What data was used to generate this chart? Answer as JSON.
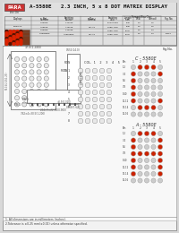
{
  "bg_color": "#d8d8d8",
  "page_bg": "#f0f0f0",
  "white": "#ffffff",
  "title_text": "A-5580E   2.3 INCH, 5 x 8 DOT MATRIX DISPLAY",
  "logo_color": "#cc3333",
  "header_bg": "#cccccc",
  "dot_on": "#cc2200",
  "dot_off": "#cccccc",
  "dot_edge": "#999999",
  "line_color": "#888888",
  "text_color": "#222222",
  "dim_color": "#555555",
  "section_label_c": "C - 5580E",
  "section_label_a": "A - 5580E",
  "footnote1": "1. All dimensions are in millimeters (inches).",
  "footnote2": "2.Tolerance is ±0.25 mm(±0.01) unless otherwise specified.",
  "c_pattern": [
    [
      0,
      1,
      1,
      1,
      0
    ],
    [
      1,
      0,
      0,
      0,
      1
    ],
    [
      1,
      0,
      0,
      0,
      0
    ],
    [
      1,
      0,
      0,
      0,
      0
    ],
    [
      1,
      0,
      0,
      0,
      0
    ],
    [
      1,
      0,
      0,
      0,
      1
    ],
    [
      0,
      1,
      1,
      1,
      0
    ],
    [
      0,
      0,
      0,
      0,
      0
    ]
  ],
  "a_pattern": [
    [
      0,
      1,
      1,
      1,
      0
    ],
    [
      1,
      0,
      0,
      0,
      1
    ],
    [
      1,
      0,
      0,
      0,
      1
    ],
    [
      1,
      1,
      1,
      1,
      1
    ],
    [
      1,
      0,
      0,
      0,
      1
    ],
    [
      1,
      0,
      0,
      0,
      1
    ],
    [
      1,
      0,
      0,
      0,
      1
    ],
    [
      0,
      0,
      0,
      0,
      0
    ]
  ]
}
